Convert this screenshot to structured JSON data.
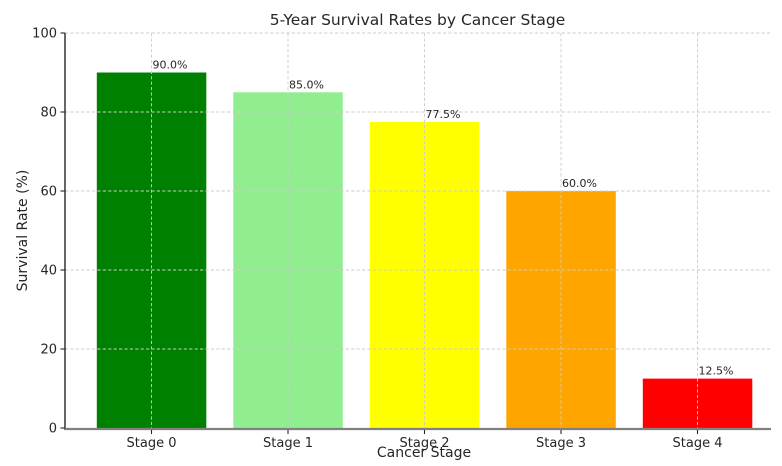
{
  "figure": {
    "background": "#ffffff"
  },
  "chart_data": {
    "type": "bar",
    "title": "5-Year Survival Rates by Cancer Stage",
    "xlabel": "Cancer Stage",
    "ylabel": "Survival Rate (%)",
    "categories": [
      "Stage 0",
      "Stage 1",
      "Stage 2",
      "Stage 3",
      "Stage 4"
    ],
    "values": [
      90.0,
      85.0,
      77.5,
      60.0,
      12.5
    ],
    "value_labels": [
      "90.0%",
      "85.0%",
      "77.5%",
      "60.0%",
      "12.5%"
    ],
    "bar_colors": [
      "#008000",
      "#90EE90",
      "#FFFF00",
      "#FFA500",
      "#FF0000"
    ],
    "ylim": [
      0,
      100
    ],
    "yticks": [
      0,
      20,
      40,
      60,
      80,
      100
    ],
    "legend": "none",
    "grid": {
      "visible": true,
      "style": "dashed",
      "color": "#cccccc",
      "drawn_over_bars": true
    },
    "axis_colors": {
      "left_spine": "#262626",
      "bottom_spine": "#808080",
      "tick_color": "#262626",
      "text_color": "#262626"
    }
  }
}
